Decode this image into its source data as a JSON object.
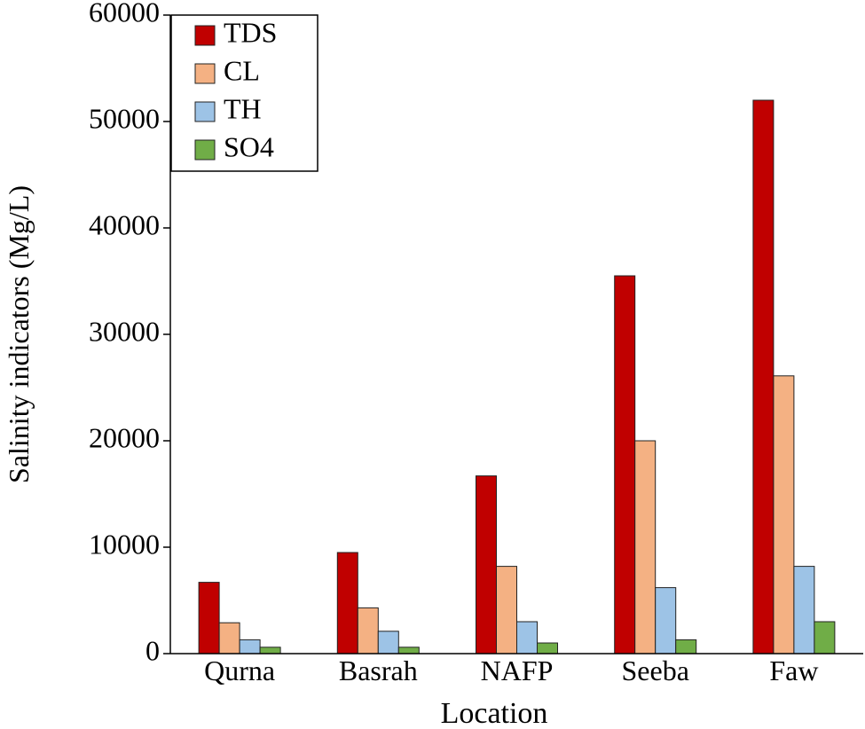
{
  "chart_data": {
    "type": "bar",
    "x_label": "Location",
    "y_label": "Salinity indicators (Mg/L)",
    "categories": [
      "Qurna",
      "Basrah",
      "NAFP",
      "Seeba",
      "Faw"
    ],
    "series": [
      {
        "name": "TDS",
        "color": "#c00000",
        "values": [
          6700,
          9500,
          16700,
          35500,
          52000
        ]
      },
      {
        "name": "CL",
        "color": "#f4b183",
        "values": [
          2900,
          4300,
          8200,
          20000,
          26100
        ]
      },
      {
        "name": "TH",
        "color": "#9dc3e6",
        "values": [
          1300,
          2100,
          3000,
          6200,
          8200
        ]
      },
      {
        "name": "SO4",
        "color": "#70ad47",
        "values": [
          600,
          600,
          1000,
          1300,
          3000
        ]
      }
    ],
    "ylim": [
      0,
      60000
    ],
    "yticks": [
      0,
      10000,
      20000,
      30000,
      40000,
      50000,
      60000
    ],
    "legend": "upper-left"
  }
}
